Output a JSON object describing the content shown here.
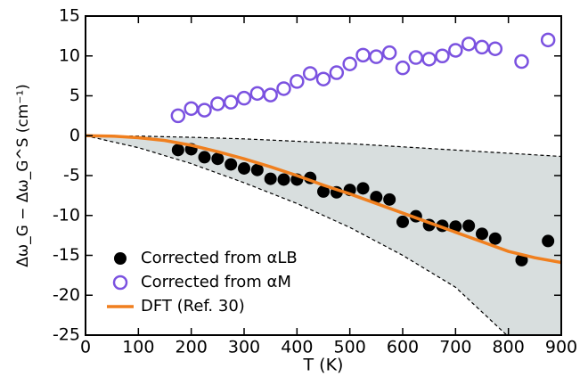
{
  "chart_data": {
    "type": "scatter",
    "xlabel": "T (K)",
    "ylabel": "Δω_G − Δω_G^S (cm⁻¹)",
    "xlim": [
      0,
      900
    ],
    "ylim": [
      -25,
      15
    ],
    "xticks": [
      0,
      100,
      200,
      300,
      400,
      500,
      600,
      700,
      800,
      900
    ],
    "yticks": [
      -25,
      -20,
      -15,
      -10,
      -5,
      0,
      5,
      10,
      15
    ],
    "band": {
      "color": "#d8dede",
      "x": [
        0,
        100,
        200,
        300,
        400,
        500,
        600,
        700,
        800,
        900
      ],
      "upper": [
        0,
        -0.05,
        -0.2,
        -0.4,
        -0.7,
        -1.0,
        -1.4,
        -1.8,
        -2.2,
        -2.6
      ],
      "lower": [
        0,
        -1.5,
        -3.5,
        -5.9,
        -8.5,
        -11.5,
        -15,
        -19,
        -25.2,
        -31
      ]
    },
    "series": [
      {
        "name": "Corrected from αLB",
        "color": "#000000",
        "marker": "filled",
        "x": [
          175,
          200,
          225,
          250,
          275,
          300,
          325,
          350,
          375,
          400,
          425,
          450,
          475,
          500,
          525,
          550,
          575,
          600,
          625,
          650,
          675,
          700,
          725,
          750,
          775,
          825,
          875
        ],
        "values": [
          -1.8,
          -1.7,
          -2.7,
          -2.9,
          -3.6,
          -4.1,
          -4.3,
          -5.4,
          -5.5,
          -5.5,
          -5.3,
          -7.0,
          -7.1,
          -6.8,
          -6.6,
          -7.7,
          -8.0,
          -10.8,
          -10.1,
          -11.2,
          -11.3,
          -11.4,
          -11.3,
          -12.3,
          -12.9,
          -15.6,
          -13.2
        ]
      },
      {
        "name": "Corrected from αM",
        "color": "#7b52e0",
        "marker": "open",
        "x": [
          175,
          200,
          225,
          250,
          275,
          300,
          325,
          350,
          375,
          400,
          425,
          450,
          475,
          500,
          525,
          550,
          575,
          600,
          625,
          650,
          675,
          700,
          725,
          750,
          775,
          825,
          875
        ],
        "values": [
          2.5,
          3.4,
          3.2,
          4.0,
          4.2,
          4.7,
          5.3,
          5.1,
          5.9,
          6.8,
          7.8,
          7.1,
          7.9,
          9.0,
          10.1,
          9.9,
          10.4,
          8.5,
          9.8,
          9.6,
          10.0,
          10.7,
          11.5,
          11.1,
          10.9,
          9.3,
          12.0
        ]
      },
      {
        "name": "DFT (Ref. 30)",
        "color": "#f07f1e",
        "marker": "line",
        "x": [
          0,
          50,
          100,
          150,
          200,
          250,
          300,
          350,
          400,
          450,
          500,
          550,
          600,
          650,
          700,
          750,
          800,
          850,
          900
        ],
        "values": [
          0,
          -0.05,
          -0.25,
          -0.6,
          -1.2,
          -2.0,
          -2.9,
          -3.9,
          -5.0,
          -6.2,
          -7.3,
          -8.5,
          -9.7,
          -10.9,
          -12.1,
          -13.3,
          -14.5,
          -15.3,
          -15.9
        ]
      }
    ]
  }
}
